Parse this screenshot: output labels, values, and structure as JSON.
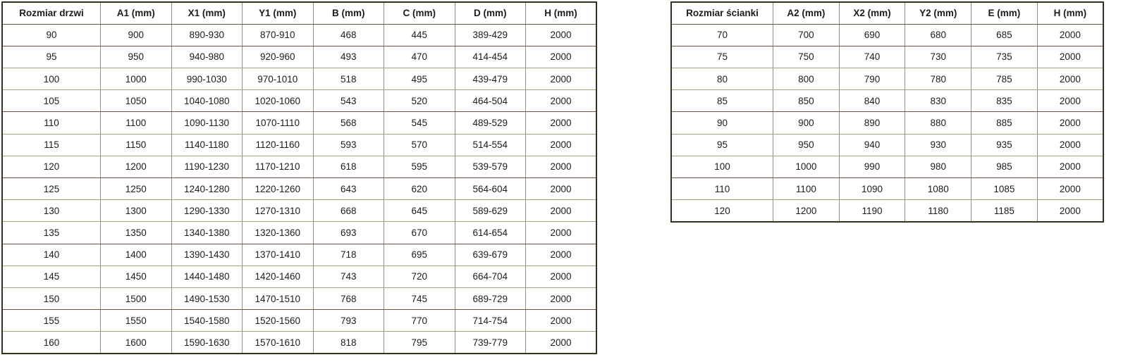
{
  "colors": {
    "background": "#ffffff",
    "text": "#1c1c1c",
    "outer_border": "#33311f",
    "grid_vertical": "#8a9671",
    "grid_horizontal": "#9aa87b",
    "grid_maroon": "#6f5047",
    "header_separator": "#5c5a40"
  },
  "tables": {
    "door": {
      "headers": [
        "Rozmiar drzwi",
        "A1 (mm)",
        "X1 (mm)",
        "Y1 (mm)",
        "B (mm)",
        "C (mm)",
        "D (mm)",
        "H (mm)"
      ],
      "rows": [
        [
          "90",
          "900",
          "890-930",
          "870-910",
          "468",
          "445",
          "389-429",
          "2000"
        ],
        [
          "95",
          "950",
          "940-980",
          "920-960",
          "493",
          "470",
          "414-454",
          "2000"
        ],
        [
          "100",
          "1000",
          "990-1030",
          "970-1010",
          "518",
          "495",
          "439-479",
          "2000"
        ],
        [
          "105",
          "1050",
          "1040-1080",
          "1020-1060",
          "543",
          "520",
          "464-504",
          "2000"
        ],
        [
          "110",
          "1100",
          "1090-1130",
          "1070-1110",
          "568",
          "545",
          "489-529",
          "2000"
        ],
        [
          "115",
          "1150",
          "1140-1180",
          "1120-1160",
          "593",
          "570",
          "514-554",
          "2000"
        ],
        [
          "120",
          "1200",
          "1190-1230",
          "1170-1210",
          "618",
          "595",
          "539-579",
          "2000"
        ],
        [
          "125",
          "1250",
          "1240-1280",
          "1220-1260",
          "643",
          "620",
          "564-604",
          "2000"
        ],
        [
          "130",
          "1300",
          "1290-1330",
          "1270-1310",
          "668",
          "645",
          "589-629",
          "2000"
        ],
        [
          "135",
          "1350",
          "1340-1380",
          "1320-1360",
          "693",
          "670",
          "614-654",
          "2000"
        ],
        [
          "140",
          "1400",
          "1390-1430",
          "1370-1410",
          "718",
          "695",
          "639-679",
          "2000"
        ],
        [
          "145",
          "1450",
          "1440-1480",
          "1420-1460",
          "743",
          "720",
          "664-704",
          "2000"
        ],
        [
          "150",
          "1500",
          "1490-1530",
          "1470-1510",
          "768",
          "745",
          "689-729",
          "2000"
        ],
        [
          "155",
          "1550",
          "1540-1580",
          "1520-1560",
          "793",
          "770",
          "714-754",
          "2000"
        ],
        [
          "160",
          "1600",
          "1590-1630",
          "1570-1610",
          "818",
          "795",
          "739-779",
          "2000"
        ]
      ]
    },
    "wall": {
      "headers": [
        "Rozmiar ścianki",
        "A2 (mm)",
        "X2 (mm)",
        "Y2 (mm)",
        "E (mm)",
        "H (mm)"
      ],
      "rows": [
        [
          "70",
          "700",
          "690",
          "680",
          "685",
          "2000"
        ],
        [
          "75",
          "750",
          "740",
          "730",
          "735",
          "2000"
        ],
        [
          "80",
          "800",
          "790",
          "780",
          "785",
          "2000"
        ],
        [
          "85",
          "850",
          "840",
          "830",
          "835",
          "2000"
        ],
        [
          "90",
          "900",
          "890",
          "880",
          "885",
          "2000"
        ],
        [
          "95",
          "950",
          "940",
          "930",
          "935",
          "2000"
        ],
        [
          "100",
          "1000",
          "990",
          "980",
          "985",
          "2000"
        ],
        [
          "110",
          "1100",
          "1090",
          "1080",
          "1085",
          "2000"
        ],
        [
          "120",
          "1200",
          "1190",
          "1180",
          "1185",
          "2000"
        ]
      ]
    }
  }
}
